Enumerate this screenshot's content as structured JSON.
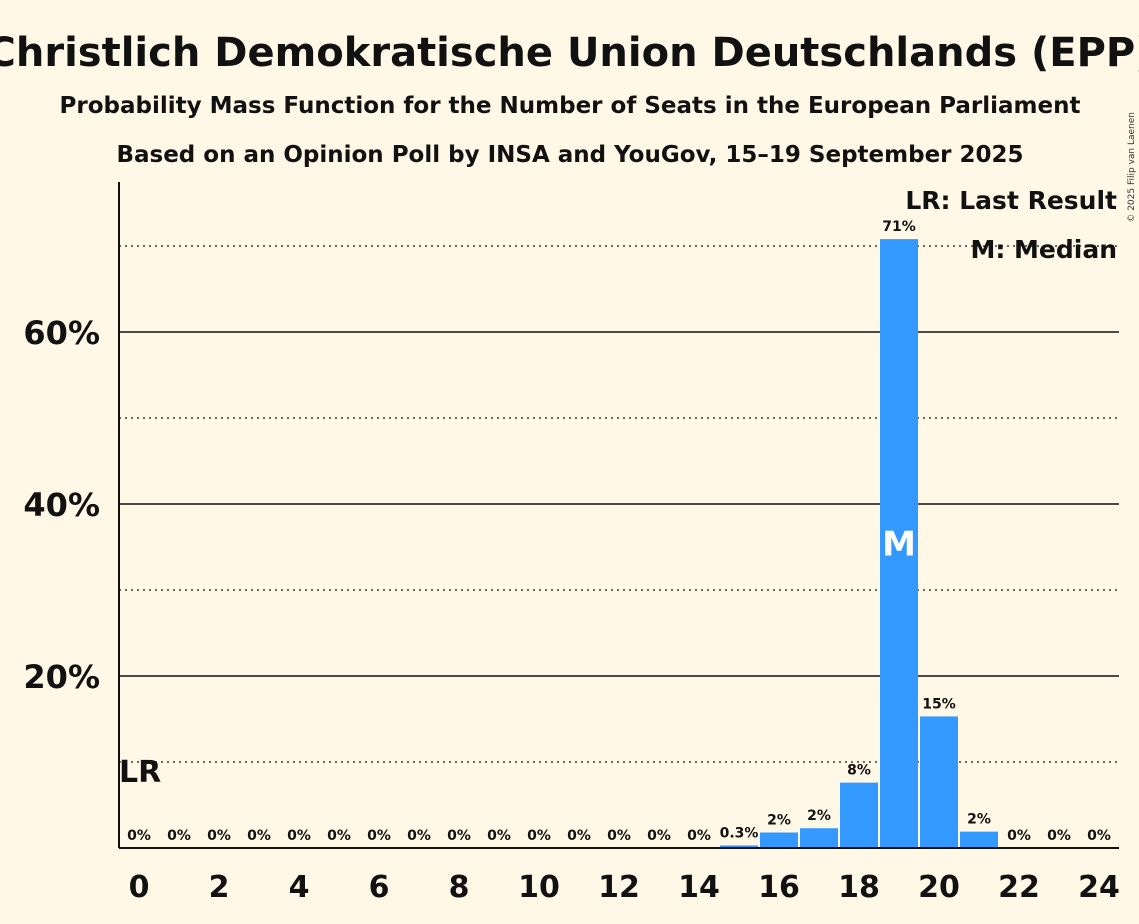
{
  "copyright": "© 2025 Filip van Laenen",
  "chart_data": {
    "type": "bar",
    "title": "Christlich Demokratische Union Deutschlands (EPP)",
    "subtitle1": "Probability Mass Function for the Number of Seats in the European Parliament",
    "subtitle2": "Based on an Opinion Poll by INSA and YouGov, 15–19 September 2025",
    "x": [
      0,
      1,
      2,
      3,
      4,
      5,
      6,
      7,
      8,
      9,
      10,
      11,
      12,
      13,
      14,
      15,
      16,
      17,
      18,
      19,
      20,
      21,
      22,
      23,
      24
    ],
    "values": [
      0,
      0,
      0,
      0,
      0,
      0,
      0,
      0,
      0,
      0,
      0,
      0,
      0,
      0,
      0,
      0.3,
      1.8,
      2.3,
      7.6,
      70.8,
      15.3,
      1.9,
      0,
      0,
      0
    ],
    "data_labels": [
      "0%",
      "0%",
      "0%",
      "0%",
      "0%",
      "0%",
      "0%",
      "0%",
      "0%",
      "0%",
      "0%",
      "0%",
      "0%",
      "0%",
      "0%",
      "0.3%",
      "2%",
      "2%",
      "8%",
      "71%",
      "15%",
      "2%",
      "0%",
      "0%",
      "0%"
    ],
    "x_tick_labels": [
      "0",
      "2",
      "4",
      "6",
      "8",
      "10",
      "12",
      "14",
      "16",
      "18",
      "20",
      "22",
      "24"
    ],
    "x_tick_values": [
      0,
      2,
      4,
      6,
      8,
      10,
      12,
      14,
      16,
      18,
      20,
      22,
      24
    ],
    "y_ticks": [
      20,
      40,
      60
    ],
    "y_tick_labels": [
      "20%",
      "40%",
      "60%"
    ],
    "y_minor_ticks": [
      10,
      30,
      50,
      70
    ],
    "ylim": [
      0,
      77
    ],
    "bar_color": "#3399ff",
    "last_result_seat": 0,
    "last_result_marker": "LR",
    "median_seat": 19,
    "median_marker": "M",
    "legend": [
      "LR: Last Result",
      "M: Median"
    ],
    "legend_position": "top-right"
  }
}
